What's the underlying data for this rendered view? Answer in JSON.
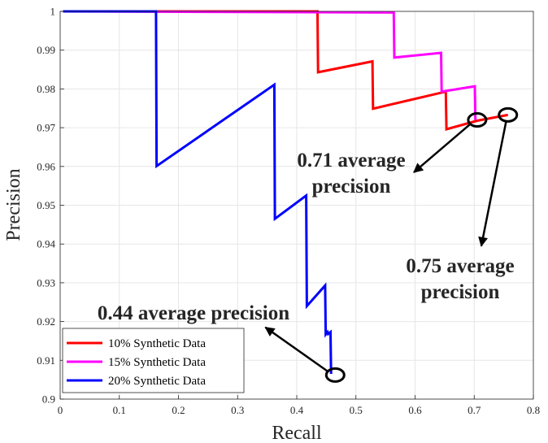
{
  "chart_data": {
    "type": "line",
    "xlabel": "Recall",
    "ylabel": "Precision",
    "xlim": [
      0,
      0.8
    ],
    "ylim": [
      0.9,
      1
    ],
    "xticks": [
      "0",
      "0.1",
      "0.2",
      "0.3",
      "0.4",
      "0.5",
      "0.6",
      "0.7",
      "0.8"
    ],
    "yticks": [
      "0.9",
      "0.91",
      "0.92",
      "0.93",
      "0.94",
      "0.95",
      "0.96",
      "0.97",
      "0.98",
      "0.99",
      "1"
    ],
    "grid": true,
    "legend_position": "bottom-left",
    "series": [
      {
        "name": "10% Synthetic Data",
        "color": "#ff0000",
        "x": [
          0.005,
          0.435,
          0.436,
          0.528,
          0.529,
          0.652,
          0.653,
          0.705,
          0.757
        ],
        "y": [
          1.0,
          1.0,
          0.9843,
          0.9871,
          0.9749,
          0.9793,
          0.9696,
          0.9718,
          0.9733
        ]
      },
      {
        "name": "15% Synthetic Data",
        "color": "#ff00ff",
        "x": [
          0.005,
          0.564,
          0.565,
          0.644,
          0.645,
          0.701,
          0.702
        ],
        "y": [
          1.0,
          0.9997,
          0.9881,
          0.9893,
          0.9793,
          0.9807,
          0.972
        ]
      },
      {
        "name": "20% Synthetic Data",
        "color": "#0000ff",
        "x": [
          0.005,
          0.162,
          0.163,
          0.362,
          0.363,
          0.416,
          0.417,
          0.448,
          0.449,
          0.452,
          0.453,
          0.457,
          0.458
        ],
        "y": [
          1.0,
          1.0,
          0.9601,
          0.9811,
          0.9465,
          0.9525,
          0.924,
          0.9293,
          0.9167,
          0.9173,
          0.9168,
          0.9173,
          0.9065
        ]
      }
    ],
    "annotations": [
      {
        "text": [
          "0.71 average",
          "precision"
        ],
        "point": [
          0.705,
          0.972
        ],
        "arrow_to": [
          0.598,
          0.9585
        ]
      },
      {
        "text": [
          "0.75 average",
          "precision"
        ],
        "point": [
          0.757,
          0.9733
        ],
        "arrow_to": [
          0.712,
          0.9395
        ]
      },
      {
        "text": [
          "0.44 average precision"
        ],
        "point": [
          0.465,
          0.9062
        ],
        "arrow_to": [
          0.347,
          0.9185
        ]
      }
    ]
  }
}
